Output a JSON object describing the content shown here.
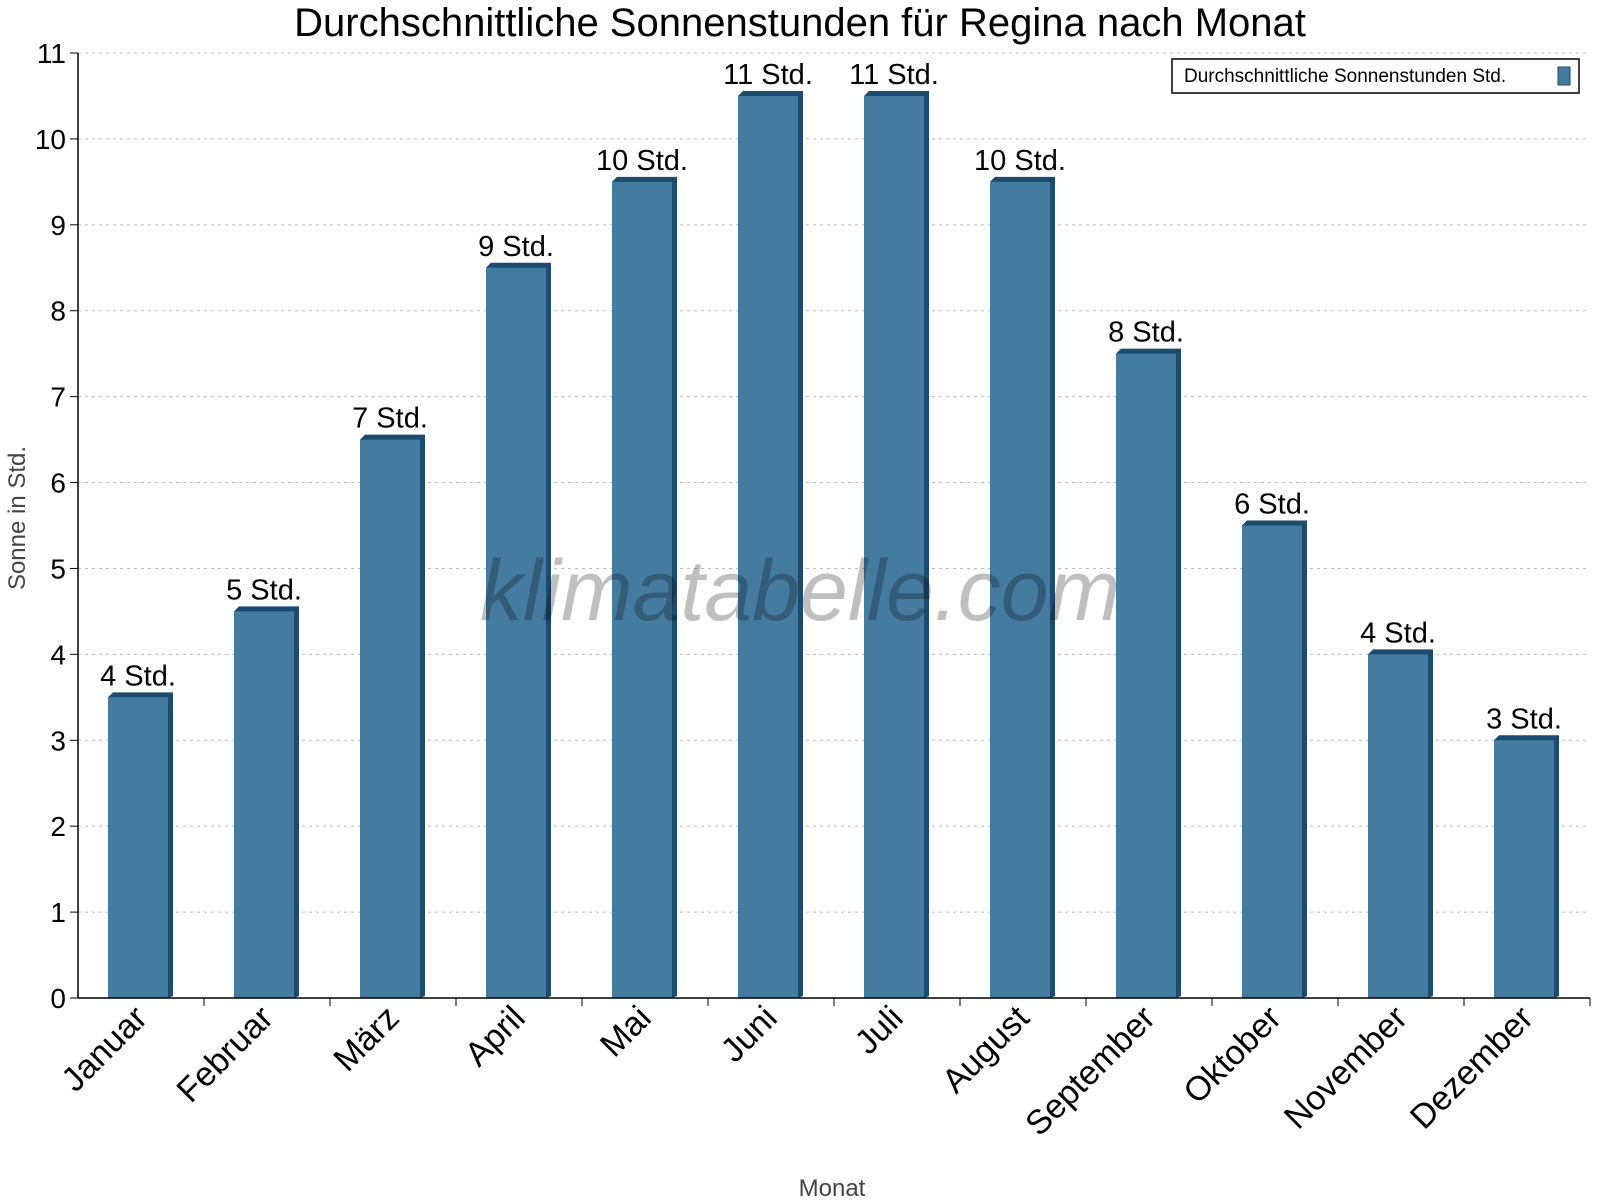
{
  "chart_data": {
    "type": "bar",
    "title": "Durchschnittliche Sonnenstunden für Regina nach Monat",
    "xlabel": "Monat",
    "ylabel": "Sonne in Std.",
    "ylim": [
      0,
      11
    ],
    "yticks": [
      "0",
      "1",
      "2",
      "3",
      "4",
      "5",
      "6",
      "7",
      "8",
      "9",
      "10",
      "11"
    ],
    "grid": true,
    "legend_position": "top-right",
    "categories": [
      "Januar",
      "Februar",
      "März",
      "April",
      "Mai",
      "Juni",
      "Juli",
      "August",
      "September",
      "Oktober",
      "November",
      "Dezember"
    ],
    "series": [
      {
        "name": "Durchschnittliche Sonnenstunden Std.",
        "values": [
          3.5,
          4.5,
          6.5,
          8.5,
          9.5,
          10.5,
          10.5,
          9.5,
          7.5,
          5.5,
          4,
          3
        ],
        "labels": [
          "4 Std.",
          "5 Std.",
          "7 Std.",
          "9 Std.",
          "10 Std.",
          "11 Std.",
          "11 Std.",
          "10 Std.",
          "8 Std.",
          "6 Std.",
          "4 Std.",
          "3 Std."
        ]
      }
    ],
    "colors": {
      "bar": "#467ba0",
      "bar_dark": "#1b4b6e"
    },
    "watermark": "klimatabelle.com"
  }
}
